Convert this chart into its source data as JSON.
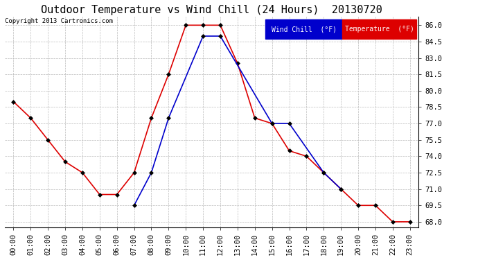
{
  "title": "Outdoor Temperature vs Wind Chill (24 Hours)  20130720",
  "copyright_text": "Copyright 2013 Cartronics.com",
  "hours": [
    "00:00",
    "01:00",
    "02:00",
    "03:00",
    "04:00",
    "05:00",
    "06:00",
    "07:00",
    "08:00",
    "09:00",
    "10:00",
    "11:00",
    "12:00",
    "13:00",
    "14:00",
    "15:00",
    "16:00",
    "17:00",
    "18:00",
    "19:00",
    "20:00",
    "21:00",
    "22:00",
    "23:00"
  ],
  "temperature": [
    79.0,
    77.5,
    75.5,
    73.5,
    72.5,
    70.5,
    70.5,
    72.5,
    77.5,
    81.5,
    86.0,
    86.0,
    86.0,
    82.5,
    77.5,
    77.0,
    74.5,
    74.0,
    72.5,
    71.0,
    69.5,
    69.5,
    68.0,
    68.0
  ],
  "wind_chill": [
    null,
    null,
    null,
    null,
    null,
    null,
    null,
    69.5,
    72.5,
    77.5,
    null,
    85.0,
    85.0,
    null,
    null,
    77.0,
    77.0,
    null,
    72.5,
    71.0,
    null,
    null,
    null,
    null
  ],
  "ylim": [
    67.5,
    86.75
  ],
  "yticks": [
    68.0,
    69.5,
    71.0,
    72.5,
    74.0,
    75.5,
    77.0,
    78.5,
    80.0,
    81.5,
    83.0,
    84.5,
    86.0
  ],
  "temp_color": "#dd0000",
  "wind_chill_color": "#0000cc",
  "background_color": "#ffffff",
  "grid_color": "#bbbbbb",
  "legend_wind_chill_bg": "#0000cc",
  "legend_temp_bg": "#dd0000",
  "legend_text_color": "#ffffff",
  "title_fontsize": 11,
  "tick_fontsize": 7.5,
  "copyright_fontsize": 6.5,
  "marker": "D",
  "marker_size": 3,
  "linewidth": 1.2
}
